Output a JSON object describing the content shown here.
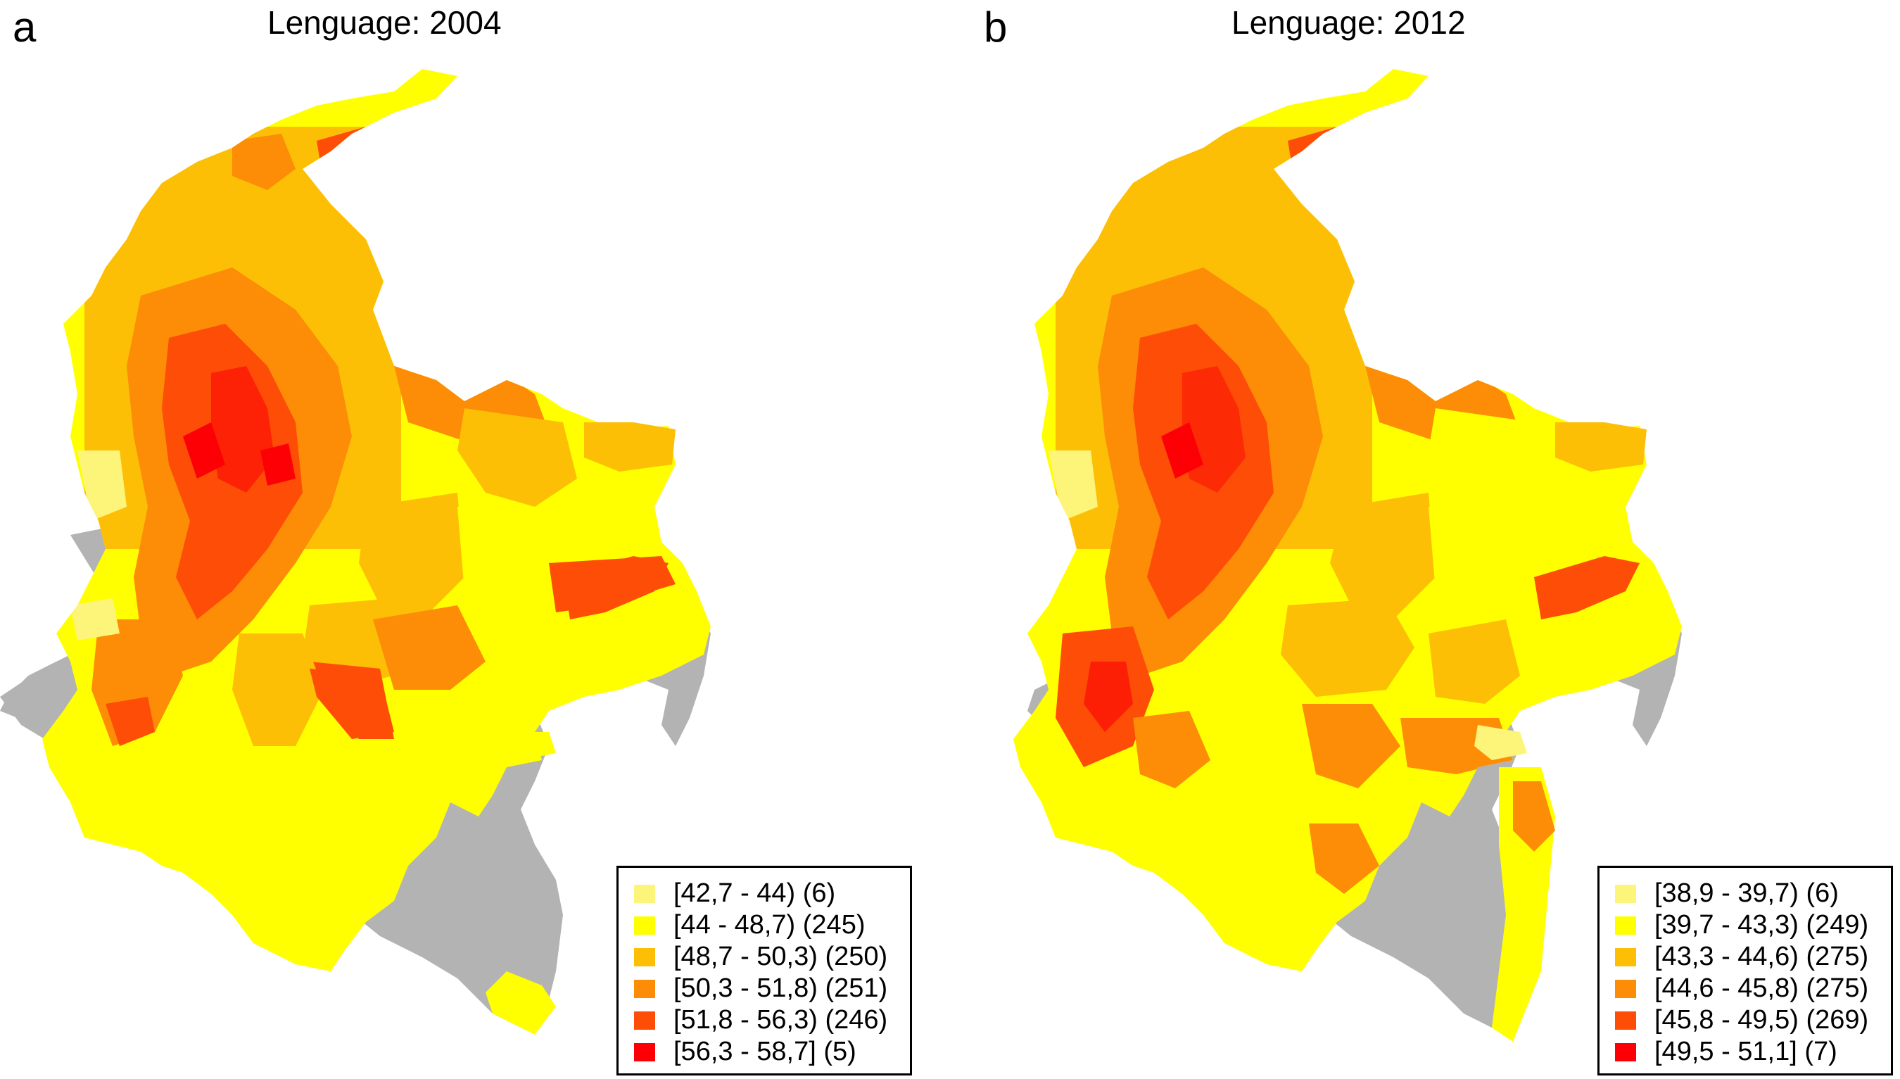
{
  "panels": [
    {
      "letter": "a",
      "title": "Lenguage: 2004",
      "legend": [
        {
          "label": "[42,7 - 44) (6)",
          "color": "#fdf57a"
        },
        {
          "label": "[44 - 48,7) (245)",
          "color": "#ffff00"
        },
        {
          "label": "[48,7 - 50,3) (250)",
          "color": "#fcbf06"
        },
        {
          "label": "[50,3 - 51,8) (251)",
          "color": "#fd8c06"
        },
        {
          "label": "[51,8 - 56,3) (246)",
          "color": "#fd4d06"
        },
        {
          "label": "[56,3 - 58,7] (5)",
          "color": "#fd0006"
        }
      ],
      "no_data_color": "#b3b3b3"
    },
    {
      "letter": "b",
      "title": "Lenguage: 2012",
      "legend": [
        {
          "label": "[38,9 - 39,7) (6)",
          "color": "#fdf57a"
        },
        {
          "label": "[39,7 - 43,3) (249)",
          "color": "#ffff00"
        },
        {
          "label": "[43,3 - 44,6) (275)",
          "color": "#fcbf06"
        },
        {
          "label": "[44,6 - 45,8) (275)",
          "color": "#fd8c06"
        },
        {
          "label": "[45,8 - 49,5) (269)",
          "color": "#fd4d06"
        },
        {
          "label": "[49,5 - 51,1] (7)",
          "color": "#fd0006"
        }
      ],
      "no_data_color": "#b3b3b3"
    }
  ]
}
